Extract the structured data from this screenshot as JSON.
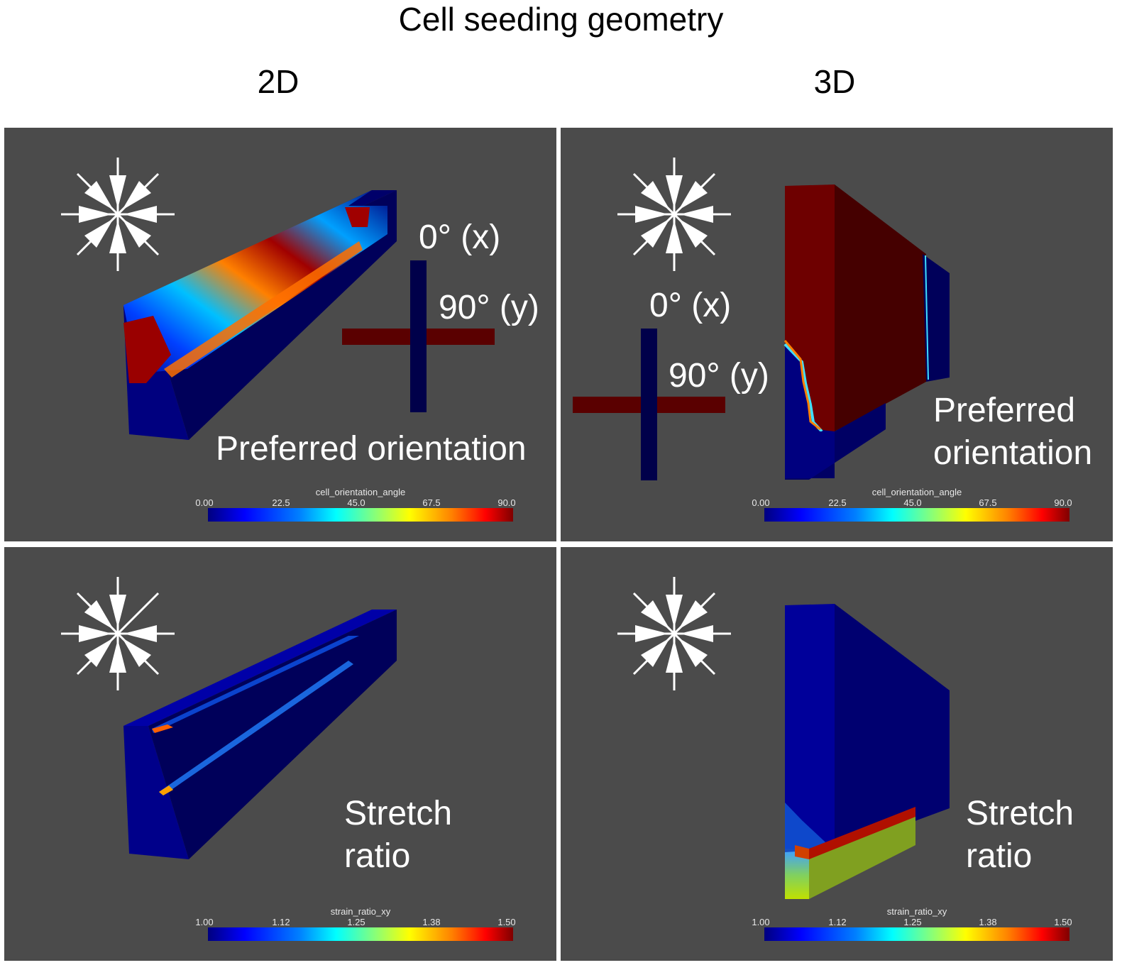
{
  "figure": {
    "title": "Cell seeding geometry",
    "columns": [
      "2D",
      "3D"
    ]
  },
  "panels": {
    "tl": {
      "label": "Preferred orientation",
      "axis_x": "0° (x)",
      "axis_y": "90° (y)",
      "colorbar": {
        "title": "cell_orientation_angle",
        "ticks": [
          "0.00",
          "22.5",
          "45.0",
          "67.5",
          "90.0"
        ],
        "range": [
          0.0,
          90.0
        ],
        "colormap": "jet"
      }
    },
    "tr": {
      "label_line1": "Preferred",
      "label_line2": "orientation",
      "axis_x": "0° (x)",
      "axis_y": "90° (y)",
      "colorbar": {
        "title": "cell_orientation_angle",
        "ticks": [
          "0.00",
          "22.5",
          "45.0",
          "67.5",
          "90.0"
        ],
        "range": [
          0.0,
          90.0
        ],
        "colormap": "jet"
      }
    },
    "bl": {
      "label_line1": "Stretch",
      "label_line2": "ratio",
      "colorbar": {
        "title": "strain_ratio_xy",
        "ticks": [
          "1.00",
          "1.12",
          "1.25",
          "1.38",
          "1.50"
        ],
        "range": [
          1.0,
          1.5
        ],
        "colormap": "jet"
      }
    },
    "br": {
      "label_line1": "Stretch",
      "label_line2": "ratio",
      "colorbar": {
        "title": "strain_ratio_xy",
        "ticks": [
          "1.00",
          "1.12",
          "1.25",
          "1.38",
          "1.50"
        ],
        "range": [
          1.0,
          1.5
        ],
        "colormap": "jet"
      }
    }
  },
  "colors": {
    "panel_bg": "#4b4b4b",
    "low_blue": "#00007f",
    "high_red": "#7f0000",
    "text": "#ffffff"
  }
}
